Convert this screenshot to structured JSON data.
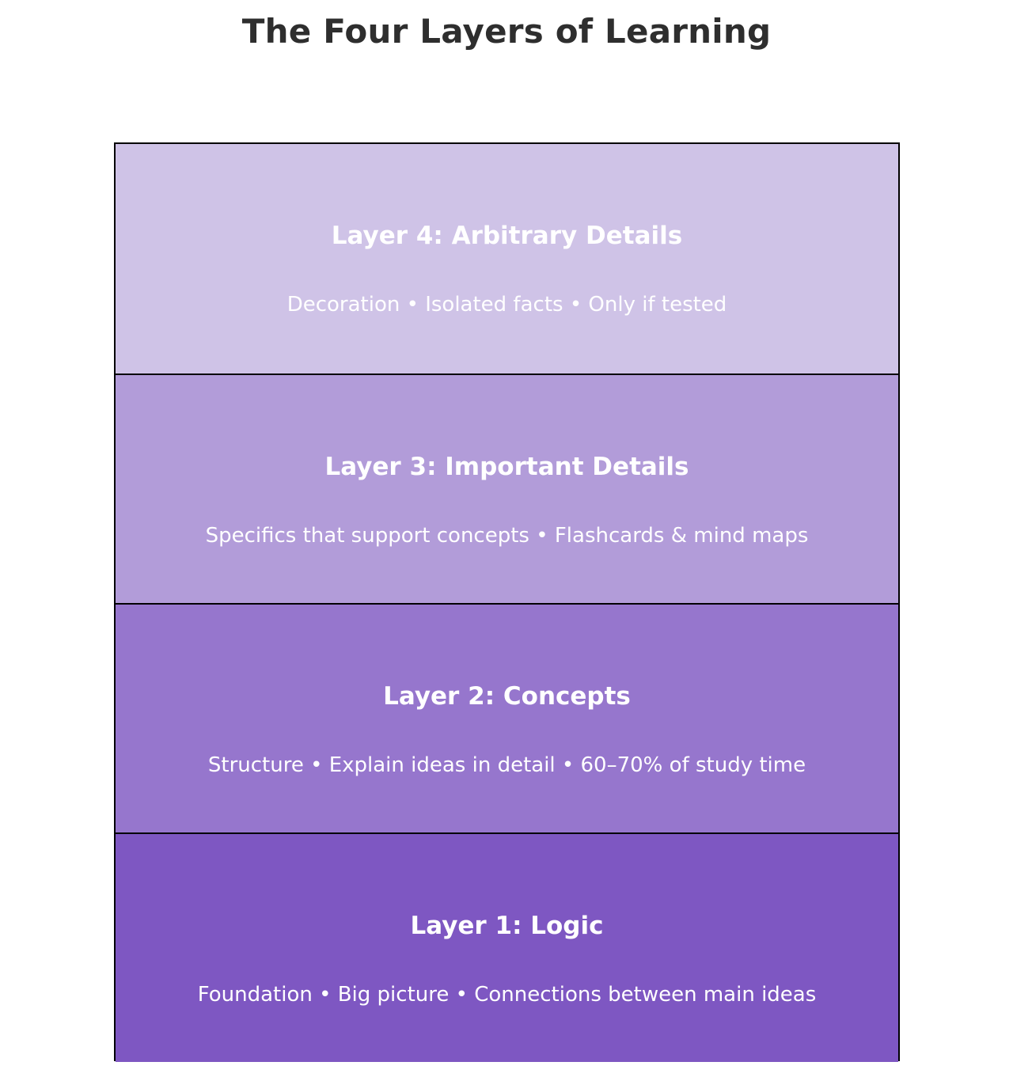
{
  "title": "The Four Layers of Learning",
  "layers": [
    {
      "name": "Layer 4: Arbitrary Details",
      "description": "Decoration • Isolated facts • Only if tested",
      "color": "#cfc3e7"
    },
    {
      "name": "Layer 3: Important Details",
      "description": "Specifics that support concepts • Flashcards & mind maps",
      "color": "#b29cd9"
    },
    {
      "name": "Layer 2: Concepts",
      "description": "Structure • Explain ideas in detail • 60–70% of study time",
      "color": "#9676cd"
    },
    {
      "name": "Layer 1: Logic",
      "description": "Foundation • Big picture • Connections between main ideas",
      "color": "#7e57c2"
    }
  ]
}
